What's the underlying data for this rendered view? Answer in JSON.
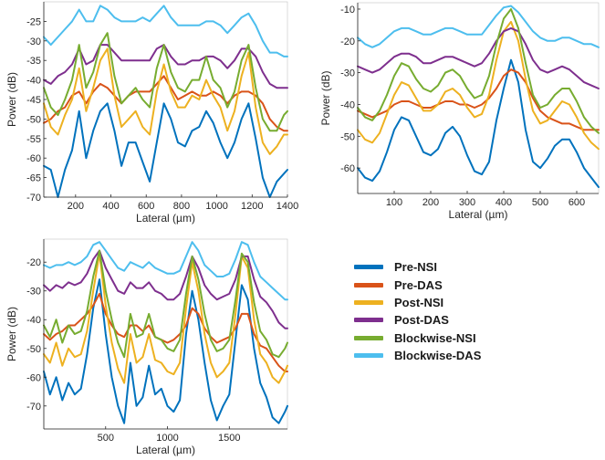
{
  "chart_data": [
    {
      "type": "line",
      "title": "",
      "xlabel": "Lateral (µm)",
      "ylabel": "Power (dB)",
      "xlim": [
        20,
        1400
      ],
      "ylim": [
        -70,
        -20
      ],
      "xticks": [
        200,
        400,
        600,
        800,
        1000,
        1200,
        1400
      ],
      "yticks": [
        -70,
        -65,
        -60,
        -55,
        -50,
        -45,
        -40,
        -35,
        -30,
        -25
      ],
      "grid": false,
      "x": [
        20,
        60,
        100,
        140,
        180,
        220,
        260,
        300,
        340,
        380,
        420,
        460,
        500,
        540,
        580,
        620,
        660,
        700,
        740,
        780,
        820,
        860,
        900,
        940,
        980,
        1020,
        1060,
        1100,
        1140,
        1180,
        1220,
        1260,
        1300,
        1340,
        1380,
        1400
      ],
      "series": [
        {
          "name": "Pre-NSI",
          "values": [
            -62,
            -63,
            -70,
            -63,
            -58,
            -48,
            -60,
            -53,
            -48,
            -46,
            -53,
            -62,
            -56,
            -56,
            -61,
            -66,
            -56,
            -46,
            -50,
            -56,
            -57,
            -53,
            -52,
            -48,
            -51,
            -56,
            -60,
            -56,
            -50,
            -46,
            -55,
            -65,
            -70,
            -66,
            -64,
            -63
          ]
        },
        {
          "name": "Pre-DAS",
          "values": [
            -51,
            -50,
            -48,
            -47,
            -44,
            -43,
            -46,
            -43,
            -41,
            -42,
            -44,
            -46,
            -44,
            -43,
            -43,
            -43,
            -41,
            -39,
            -42,
            -45,
            -44,
            -43,
            -44,
            -44,
            -43,
            -44,
            -46,
            -44,
            -43,
            -43,
            -44,
            -46,
            -50,
            -52,
            -53,
            -53
          ]
        },
        {
          "name": "Post-NSI",
          "values": [
            -46,
            -52,
            -54,
            -49,
            -45,
            -37,
            -48,
            -42,
            -35,
            -32,
            -44,
            -52,
            -50,
            -48,
            -52,
            -54,
            -43,
            -36,
            -43,
            -47,
            -47,
            -44,
            -45,
            -40,
            -44,
            -47,
            -53,
            -48,
            -39,
            -33,
            -47,
            -56,
            -59,
            -57,
            -54,
            -54
          ]
        },
        {
          "name": "Post-DAS",
          "values": [
            -40,
            -41,
            -39,
            -38,
            -36,
            -32,
            -36,
            -35,
            -31,
            -31,
            -33,
            -35,
            -35,
            -35,
            -35,
            -35,
            -32,
            -31,
            -34,
            -36,
            -36,
            -35,
            -35,
            -34,
            -34,
            -35,
            -37,
            -35,
            -32,
            -32,
            -34,
            -38,
            -41,
            -42,
            -42,
            -42
          ]
        },
        {
          "name": "Blockwise-NSI",
          "values": [
            -42,
            -47,
            -49,
            -45,
            -40,
            -31,
            -42,
            -38,
            -31,
            -28,
            -39,
            -46,
            -44,
            -42,
            -45,
            -47,
            -37,
            -31,
            -38,
            -42,
            -43,
            -40,
            -40,
            -34,
            -40,
            -42,
            -47,
            -43,
            -35,
            -31,
            -42,
            -50,
            -53,
            -53,
            -49,
            -48
          ]
        },
        {
          "name": "Blockwise-DAS",
          "values": [
            -29,
            -31,
            -29,
            -27,
            -25,
            -22,
            -25,
            -25,
            -21,
            -22,
            -24,
            -25,
            -25,
            -25,
            -24,
            -25,
            -23,
            -21,
            -24,
            -26,
            -26,
            -26,
            -26,
            -25,
            -25,
            -26,
            -28,
            -26,
            -24,
            -23,
            -26,
            -30,
            -33,
            -33,
            -34,
            -34
          ]
        }
      ]
    },
    {
      "type": "line",
      "title": "",
      "xlabel": "Lateral (µm)",
      "ylabel": "Power (dB)",
      "xlim": [
        0,
        660
      ],
      "ylim": [
        -68,
        -8
      ],
      "xticks": [
        100,
        200,
        300,
        400,
        500,
        600
      ],
      "yticks": [
        -60,
        -50,
        -40,
        -30,
        -20,
        -10
      ],
      "grid": false,
      "x": [
        0,
        20,
        40,
        60,
        80,
        100,
        120,
        140,
        160,
        180,
        200,
        220,
        240,
        260,
        280,
        300,
        320,
        340,
        360,
        380,
        400,
        420,
        440,
        460,
        480,
        500,
        520,
        540,
        560,
        580,
        600,
        620,
        640,
        660
      ],
      "series": [
        {
          "name": "Pre-NSI",
          "values": [
            -60,
            -63,
            -64,
            -61,
            -55,
            -48,
            -44,
            -45,
            -50,
            -55,
            -56,
            -54,
            -49,
            -47,
            -50,
            -56,
            -61,
            -62,
            -58,
            -45,
            -35,
            -26,
            -33,
            -48,
            -58,
            -60,
            -57,
            -53,
            -51,
            -51,
            -55,
            -60,
            -63,
            -66
          ]
        },
        {
          "name": "Pre-DAS",
          "values": [
            -42,
            -43,
            -44,
            -43,
            -42,
            -40,
            -39,
            -39,
            -40,
            -41,
            -41,
            -40,
            -39,
            -39,
            -40,
            -40,
            -41,
            -40,
            -38,
            -35,
            -31,
            -29,
            -30,
            -33,
            -38,
            -42,
            -44,
            -45,
            -46,
            -46,
            -47,
            -48,
            -48,
            -48
          ]
        },
        {
          "name": "Post-NSI",
          "values": [
            -48,
            -51,
            -52,
            -49,
            -43,
            -37,
            -33,
            -34,
            -38,
            -42,
            -42,
            -40,
            -36,
            -35,
            -37,
            -41,
            -44,
            -43,
            -37,
            -26,
            -17,
            -14,
            -20,
            -32,
            -42,
            -46,
            -45,
            -42,
            -39,
            -40,
            -44,
            -49,
            -52,
            -54
          ]
        },
        {
          "name": "Post-DAS",
          "values": [
            -28,
            -29,
            -30,
            -29,
            -27,
            -25,
            -24,
            -24,
            -25,
            -27,
            -27,
            -26,
            -25,
            -25,
            -26,
            -27,
            -28,
            -27,
            -24,
            -20,
            -17,
            -16,
            -17,
            -21,
            -26,
            -29,
            -30,
            -29,
            -28,
            -29,
            -31,
            -33,
            -34,
            -35
          ]
        },
        {
          "name": "Blockwise-NSI",
          "values": [
            -41,
            -44,
            -45,
            -42,
            -37,
            -31,
            -27,
            -28,
            -32,
            -35,
            -36,
            -34,
            -30,
            -29,
            -31,
            -35,
            -38,
            -37,
            -31,
            -21,
            -13,
            -10,
            -16,
            -27,
            -37,
            -41,
            -40,
            -37,
            -35,
            -35,
            -39,
            -44,
            -47,
            -49
          ]
        },
        {
          "name": "Blockwise-DAS",
          "values": [
            -19,
            -21,
            -22,
            -21,
            -19,
            -17,
            -16,
            -16,
            -17,
            -18,
            -18,
            -17,
            -16,
            -16,
            -17,
            -18,
            -18,
            -18,
            -15,
            -12,
            -9.5,
            -9,
            -11,
            -14,
            -17,
            -19,
            -20,
            -20,
            -19,
            -19,
            -20,
            -21,
            -21,
            -22
          ]
        }
      ]
    },
    {
      "type": "line",
      "title": "",
      "xlabel": "Lateral (µm)",
      "ylabel": "Power (dB)",
      "xlim": [
        0,
        1970
      ],
      "ylim": [
        -78,
        -12
      ],
      "xticks": [
        500,
        1000,
        1500
      ],
      "yticks": [
        -70,
        -60,
        -50,
        -40,
        -30,
        -20
      ],
      "grid": false,
      "x": [
        0,
        50,
        100,
        150,
        200,
        250,
        300,
        350,
        400,
        450,
        500,
        550,
        600,
        650,
        700,
        750,
        800,
        850,
        900,
        950,
        1000,
        1050,
        1100,
        1150,
        1200,
        1250,
        1300,
        1350,
        1400,
        1450,
        1500,
        1550,
        1600,
        1650,
        1700,
        1750,
        1800,
        1850,
        1900,
        1950,
        1970
      ],
      "series": [
        {
          "name": "Pre-NSI",
          "values": [
            -58,
            -66,
            -60,
            -68,
            -62,
            -66,
            -64,
            -52,
            -36,
            -26,
            -45,
            -60,
            -70,
            -76,
            -55,
            -70,
            -67,
            -56,
            -66,
            -64,
            -70,
            -72,
            -68,
            -45,
            -30,
            -40,
            -55,
            -68,
            -75,
            -70,
            -66,
            -47,
            -28,
            -33,
            -50,
            -62,
            -67,
            -74,
            -76,
            -72,
            -70
          ]
        },
        {
          "name": "Pre-DAS",
          "values": [
            -45,
            -47,
            -45,
            -44,
            -42,
            -42,
            -40,
            -38,
            -35,
            -31,
            -38,
            -42,
            -45,
            -46,
            -42,
            -42,
            -44,
            -42,
            -46,
            -47,
            -48,
            -47,
            -45,
            -42,
            -36,
            -38,
            -43,
            -46,
            -48,
            -47,
            -46,
            -43,
            -38,
            -38,
            -45,
            -49,
            -50,
            -53,
            -56,
            -58,
            -58
          ]
        },
        {
          "name": "Post-NSI",
          "values": [
            -52,
            -55,
            -48,
            -56,
            -50,
            -53,
            -52,
            -44,
            -30,
            -17,
            -35,
            -48,
            -57,
            -62,
            -45,
            -55,
            -53,
            -45,
            -54,
            -55,
            -58,
            -59,
            -55,
            -36,
            -20,
            -30,
            -45,
            -55,
            -60,
            -58,
            -55,
            -38,
            -18,
            -22,
            -40,
            -52,
            -55,
            -60,
            -62,
            -58,
            -56
          ]
        },
        {
          "name": "Post-DAS",
          "values": [
            -28,
            -30,
            -28,
            -29,
            -27,
            -28,
            -27,
            -24,
            -19,
            -16,
            -22,
            -26,
            -30,
            -31,
            -27,
            -29,
            -29,
            -27,
            -30,
            -31,
            -33,
            -33,
            -31,
            -25,
            -18,
            -22,
            -28,
            -31,
            -33,
            -32,
            -31,
            -26,
            -18,
            -18,
            -26,
            -32,
            -34,
            -37,
            -41,
            -43,
            -43
          ]
        },
        {
          "name": "Blockwise-NSI",
          "values": [
            -42,
            -46,
            -40,
            -48,
            -42,
            -45,
            -44,
            -37,
            -25,
            -16,
            -30,
            -40,
            -48,
            -53,
            -38,
            -46,
            -45,
            -38,
            -46,
            -47,
            -50,
            -51,
            -47,
            -31,
            -18,
            -26,
            -38,
            -47,
            -51,
            -50,
            -47,
            -33,
            -17,
            -20,
            -34,
            -44,
            -47,
            -52,
            -53,
            -50,
            -48
          ]
        },
        {
          "name": "Blockwise-DAS",
          "values": [
            -21,
            -22,
            -21,
            -21,
            -20,
            -21,
            -20,
            -18,
            -14,
            -13,
            -16,
            -19,
            -22,
            -23,
            -20,
            -21,
            -22,
            -20,
            -22,
            -23,
            -24,
            -24,
            -23,
            -18,
            -13,
            -16,
            -21,
            -23,
            -25,
            -25,
            -24,
            -19,
            -13,
            -14,
            -20,
            -25,
            -27,
            -29,
            -31,
            -33,
            -33
          ]
        }
      ]
    }
  ],
  "legend": {
    "items": [
      {
        "label": "Pre-NSI",
        "color": "#0072BD"
      },
      {
        "label": "Pre-DAS",
        "color": "#D95319"
      },
      {
        "label": "Post-NSI",
        "color": "#EDB120"
      },
      {
        "label": "Post-DAS",
        "color": "#7E2F8E"
      },
      {
        "label": "Blockwise-NSI",
        "color": "#77AC30"
      },
      {
        "label": "Blockwise-DAS",
        "color": "#4DBEEE"
      }
    ]
  }
}
